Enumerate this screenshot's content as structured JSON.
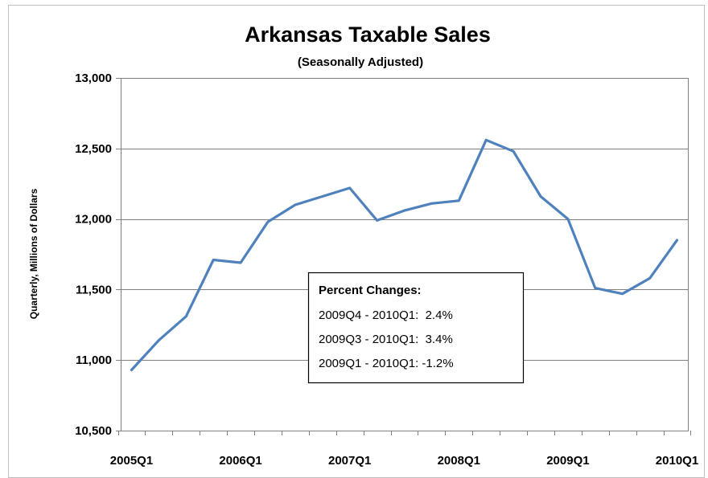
{
  "chart_data": {
    "type": "line",
    "title": "Arkansas Taxable Sales",
    "subtitle": "(Seasonally Adjusted)",
    "ylabel": "Quarterly, Millions of Dollars",
    "xlabel": "",
    "ylim": [
      10500,
      13000
    ],
    "yticks": [
      10500,
      11000,
      11500,
      12000,
      12500,
      13000
    ],
    "ytick_labels": [
      "10,500",
      "11,000",
      "11,500",
      "12,000",
      "12,500",
      "13,000"
    ],
    "xtick_labels": [
      "2005Q1",
      "2006Q1",
      "2007Q1",
      "2008Q1",
      "2009Q1",
      "2010Q1"
    ],
    "xtick_index": [
      0,
      4,
      8,
      12,
      16,
      20
    ],
    "grid": true,
    "line_color": "#4f81bd",
    "series": [
      {
        "values": [
          10930,
          11140,
          11310,
          11710,
          11690,
          11980,
          12100,
          12160,
          12220,
          11990,
          12060,
          12110,
          12130,
          12560,
          12480,
          12160,
          12000,
          11510,
          11470,
          11580,
          11850
        ]
      }
    ],
    "annotation": {
      "heading": "Percent Changes:",
      "lines": [
        "2009Q4 - 2010Q1:  2.4%",
        "2009Q3 - 2010Q1:  3.4%",
        "2009Q1 - 2010Q1: -1.2%"
      ]
    }
  }
}
